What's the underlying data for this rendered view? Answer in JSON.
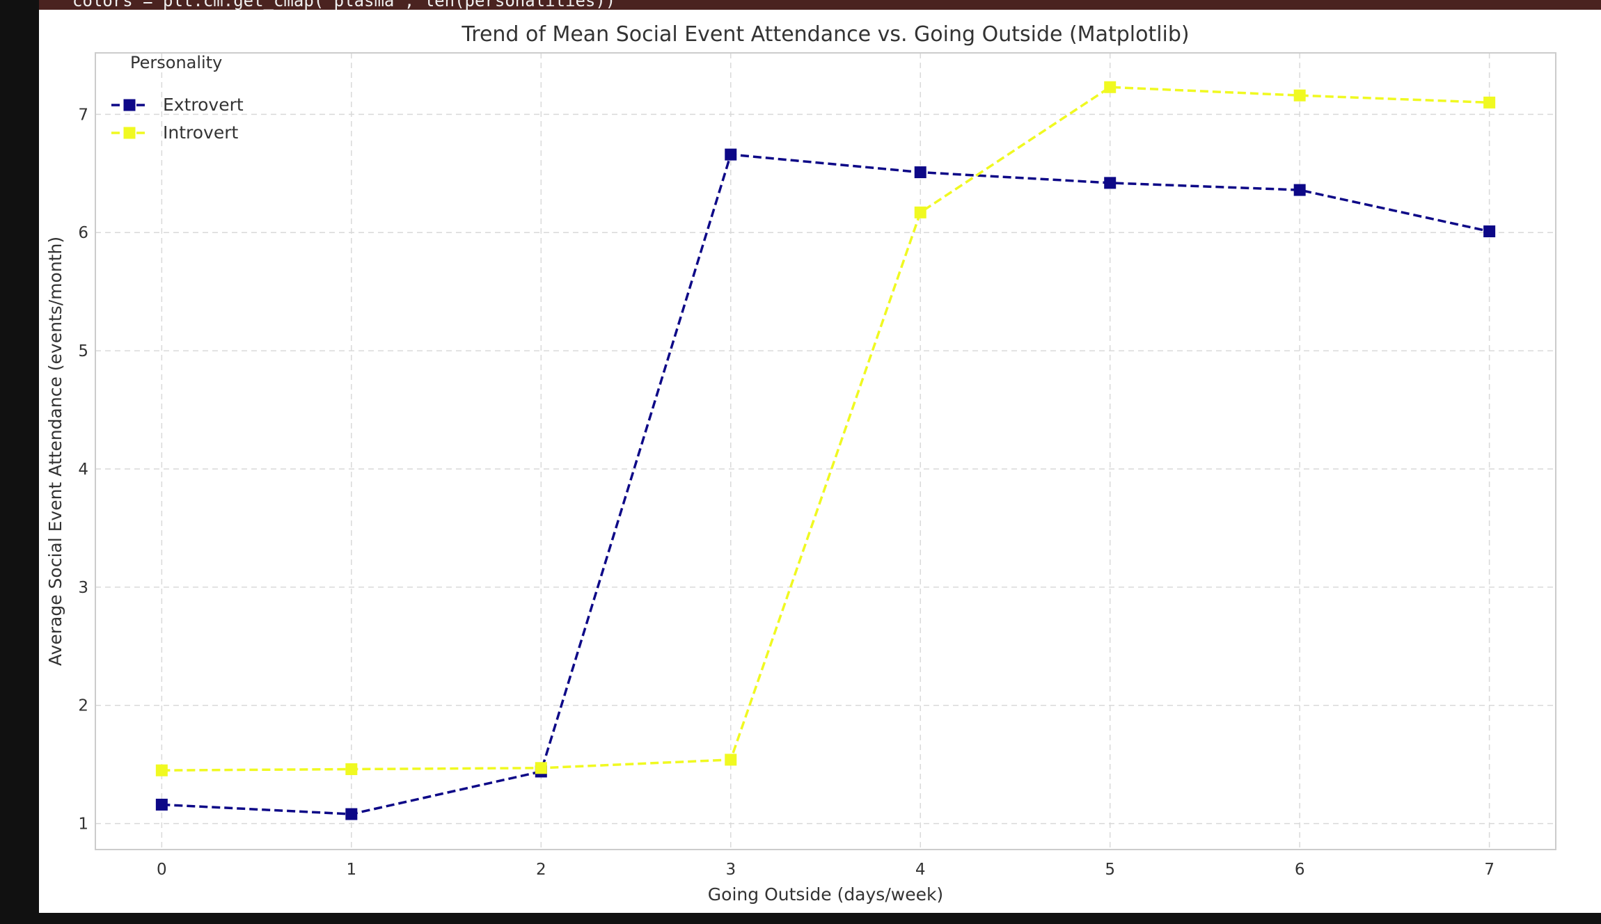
{
  "code_top": "colors = plt.cm.get_cmap('plasma', len(personalities))",
  "code_bottom": "",
  "colors": {
    "extrovert": "#0d0887",
    "introvert": "#f0f921",
    "grid": "#d9d9d9",
    "axes_edge": "#cccccc",
    "text": "#333333",
    "background": "#ffffff"
  },
  "chart_data": {
    "type": "line",
    "title": "Trend of Mean Social Event Attendance vs. Going Outside (Matplotlib)",
    "xlabel": "Going Outside (days/week)",
    "ylabel": "Average Social Event Attendance (events/month)",
    "x": [
      0,
      1,
      2,
      3,
      4,
      5,
      6,
      7
    ],
    "xticks": [
      "0",
      "1",
      "2",
      "3",
      "4",
      "5",
      "6",
      "7"
    ],
    "yticks": [
      "1",
      "2",
      "3",
      "4",
      "5",
      "6",
      "7"
    ],
    "xlim": [
      -0.35,
      7.35
    ],
    "ylim": [
      0.78,
      7.52
    ],
    "grid": true,
    "legend": {
      "title": "Personality",
      "placement": "upper-left"
    },
    "series": [
      {
        "name": "Extrovert",
        "values": [
          1.16,
          1.08,
          1.44,
          6.66,
          6.51,
          6.42,
          6.36,
          6.01
        ],
        "color": "#0d0887",
        "linestyle": "dashed",
        "marker": "square"
      },
      {
        "name": "Introvert",
        "values": [
          1.45,
          1.46,
          1.47,
          1.54,
          6.17,
          7.23,
          7.16,
          7.1
        ],
        "color": "#f0f921",
        "linestyle": "dashed",
        "marker": "square"
      }
    ]
  }
}
